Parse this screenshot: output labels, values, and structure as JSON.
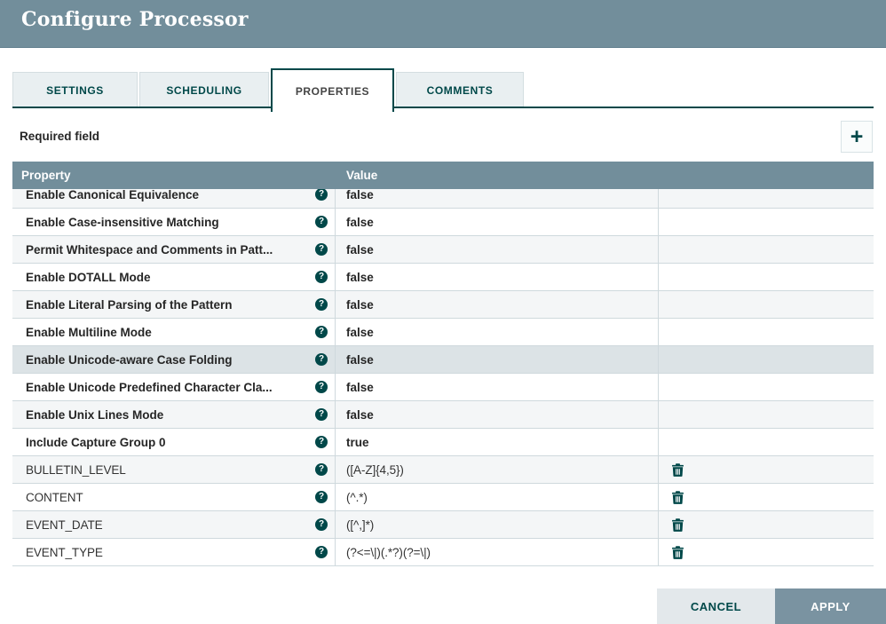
{
  "title": "Configure Processor",
  "tabs": [
    {
      "label": "SETTINGS",
      "active": false
    },
    {
      "label": "SCHEDULING",
      "active": false
    },
    {
      "label": "PROPERTIES",
      "active": true
    },
    {
      "label": "COMMENTS",
      "active": false
    }
  ],
  "properties_tab": {
    "required_field_label": "Required field",
    "add_icon": "+",
    "columns": {
      "property": "Property",
      "value": "Value"
    },
    "rows": [
      {
        "property": "Enable Canonical Equivalence",
        "value": "false",
        "static": true,
        "deletable": false,
        "selected": false
      },
      {
        "property": "Enable Case-insensitive Matching",
        "value": "false",
        "static": true,
        "deletable": false,
        "selected": false
      },
      {
        "property": "Permit Whitespace and Comments in Patt...",
        "value": "false",
        "static": true,
        "deletable": false,
        "selected": false
      },
      {
        "property": "Enable DOTALL Mode",
        "value": "false",
        "static": true,
        "deletable": false,
        "selected": false
      },
      {
        "property": "Enable Literal Parsing of the Pattern",
        "value": "false",
        "static": true,
        "deletable": false,
        "selected": false
      },
      {
        "property": "Enable Multiline Mode",
        "value": "false",
        "static": true,
        "deletable": false,
        "selected": false
      },
      {
        "property": "Enable Unicode-aware Case Folding",
        "value": "false",
        "static": true,
        "deletable": false,
        "selected": true
      },
      {
        "property": "Enable Unicode Predefined Character Cla...",
        "value": "false",
        "static": true,
        "deletable": false,
        "selected": false
      },
      {
        "property": "Enable Unix Lines Mode",
        "value": "false",
        "static": true,
        "deletable": false,
        "selected": false
      },
      {
        "property": "Include Capture Group 0",
        "value": "true",
        "static": true,
        "deletable": false,
        "selected": false
      },
      {
        "property": "BULLETIN_LEVEL",
        "value": "([A-Z]{4,5})",
        "static": false,
        "deletable": true,
        "selected": false
      },
      {
        "property": "CONTENT",
        "value": "(^.*)",
        "static": false,
        "deletable": true,
        "selected": false
      },
      {
        "property": "EVENT_DATE",
        "value": "([^,]*)",
        "static": false,
        "deletable": true,
        "selected": false
      },
      {
        "property": "EVENT_TYPE",
        "value": "(?<=\\|)(.*?)(?=\\|)",
        "static": false,
        "deletable": true,
        "selected": false
      }
    ]
  },
  "footer": {
    "cancel_label": "CANCEL",
    "apply_label": "APPLY"
  },
  "colors": {
    "header_bg": "#728E9B",
    "teal": "#004849",
    "selected_row": "#DCE3E6",
    "alt_row": "#F4F6F7",
    "row_border": "#CFD9DD",
    "apply_bg": "#7A93A1",
    "tab_inactive_bg": "#E9EFF1"
  }
}
